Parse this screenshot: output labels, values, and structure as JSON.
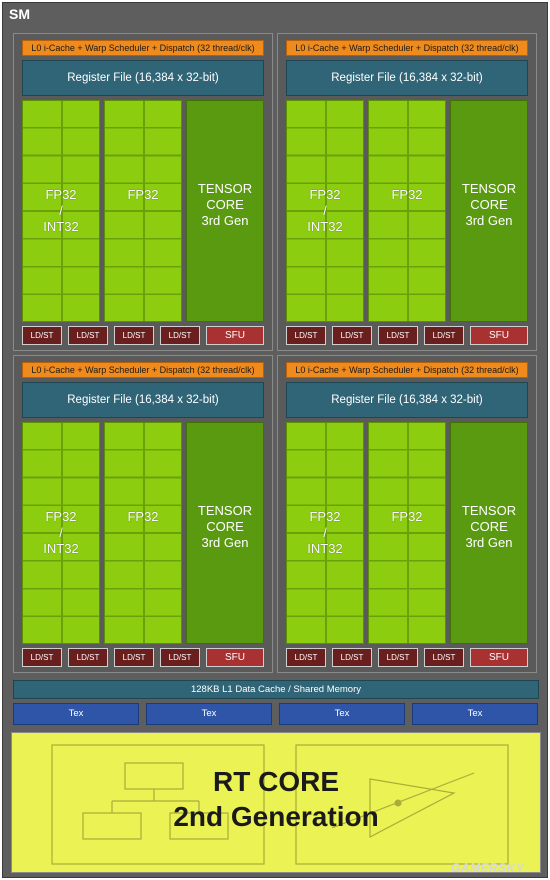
{
  "sm_label": "SM",
  "quadrant": {
    "scheduler": "L0 i-Cache + Warp Scheduler + Dispatch (32 thread/clk)",
    "register_file": "Register File (16,384 x 32-bit)",
    "fp32_int32": [
      "FP32",
      "/",
      "INT32"
    ],
    "fp32": "FP32",
    "tensor": [
      "TENSOR",
      "CORE",
      "3rd Gen"
    ],
    "ldst": "LD/ST",
    "sfu": "SFU"
  },
  "l1_cache": "128KB L1 Data Cache / Shared Memory",
  "tex": [
    "Tex",
    "Tex",
    "Tex",
    "Tex"
  ],
  "rt_core": {
    "line1": "RT CORE",
    "line2": "2nd Generation"
  },
  "watermark": "GAMERSKY"
}
